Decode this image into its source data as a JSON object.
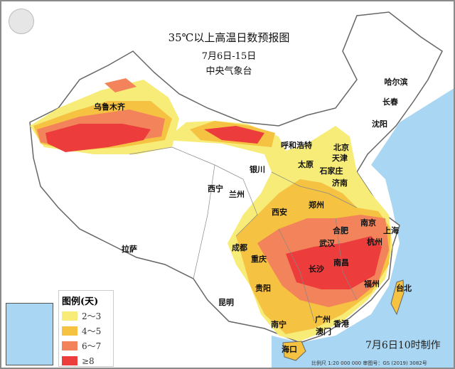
{
  "title": "35℃以上高温日数预报图",
  "date_range": "7月6日-15日",
  "agency": "中央气象台",
  "legend": {
    "title": "图例(天)",
    "items": [
      {
        "label": "2～3",
        "color": "#f7ec78"
      },
      {
        "label": "4～5",
        "color": "#f5c242"
      },
      {
        "label": "6～7",
        "color": "#f2835a"
      },
      {
        "label": "≥8",
        "color": "#ec3c3c"
      }
    ]
  },
  "cities": [
    "乌鲁木齐",
    "呼和浩特",
    "哈尔滨",
    "长春",
    "沈阳",
    "北京",
    "天津",
    "太原",
    "石家庄",
    "银川",
    "西宁",
    "兰州",
    "济南",
    "郑州",
    "西安",
    "南京",
    "合肥",
    "上海",
    "拉萨",
    "成都",
    "武汉",
    "杭州",
    "重庆",
    "长沙",
    "南昌",
    "福州",
    "台北",
    "贵阳",
    "昆明",
    "南宁",
    "广州",
    "香港",
    "澳门",
    "海口"
  ],
  "made_time": "7月6日10时制作",
  "footer": "比例尺 1:20 000 000   审图号：GS (2019) 3082号",
  "colors": {
    "sea": "#a9d6f2",
    "land": "#ffffff",
    "border": "#777777"
  }
}
